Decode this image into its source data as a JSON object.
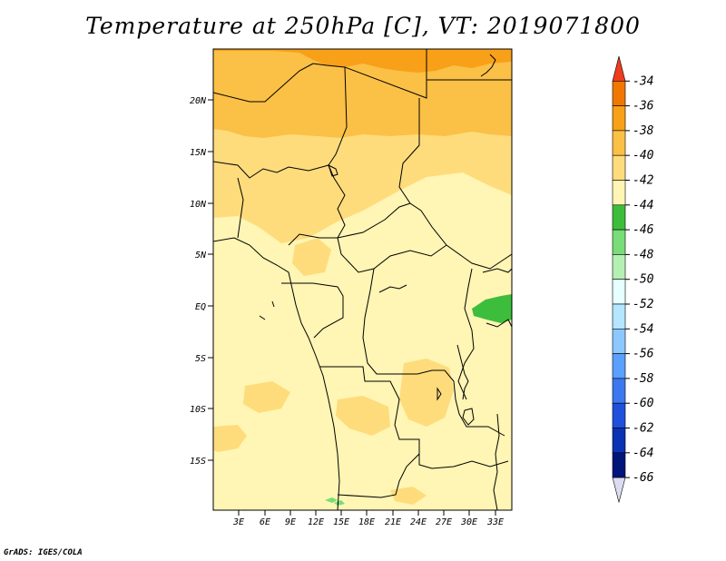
{
  "title": "Temperature at 250hPa [C], VT: 2019071800",
  "credit": "GrADS: IGES/COLA",
  "lat_labels": [
    "20N",
    "15N",
    "10N",
    "5N",
    "EQ",
    "5S",
    "10S",
    "15S"
  ],
  "lon_labels": [
    "3E",
    "6E",
    "9E",
    "12E",
    "15E",
    "18E",
    "21E",
    "24E",
    "27E",
    "30E",
    "33E"
  ],
  "colorbar": {
    "labels": [
      "-34",
      "-36",
      "-38",
      "-40",
      "-42",
      "-44",
      "-46",
      "-48",
      "-50",
      "-52",
      "-54",
      "-56",
      "-58",
      "-60",
      "-62",
      "-64",
      "-66"
    ],
    "colors": [
      "#f03c1e",
      "#f07800",
      "#f8a018",
      "#fbc046",
      "#fedc7c",
      "#fff5b4",
      "#3cbe3c",
      "#78dc78",
      "#b4f0b4",
      "#e6ffff",
      "#b4e6ff",
      "#8cc8ff",
      "#5aa0ff",
      "#3c78f0",
      "#1e50dc",
      "#0a32b4",
      "#00147a",
      "#dcdcf0"
    ]
  },
  "map_colors": {
    "t34": "#f07800",
    "t36": "#f8a018",
    "t38": "#fbc046",
    "t40": "#fedc7c",
    "t42": "#fff5b4",
    "t44": "#3cbe3c",
    "t46": "#78dc78",
    "border": "#000000"
  }
}
